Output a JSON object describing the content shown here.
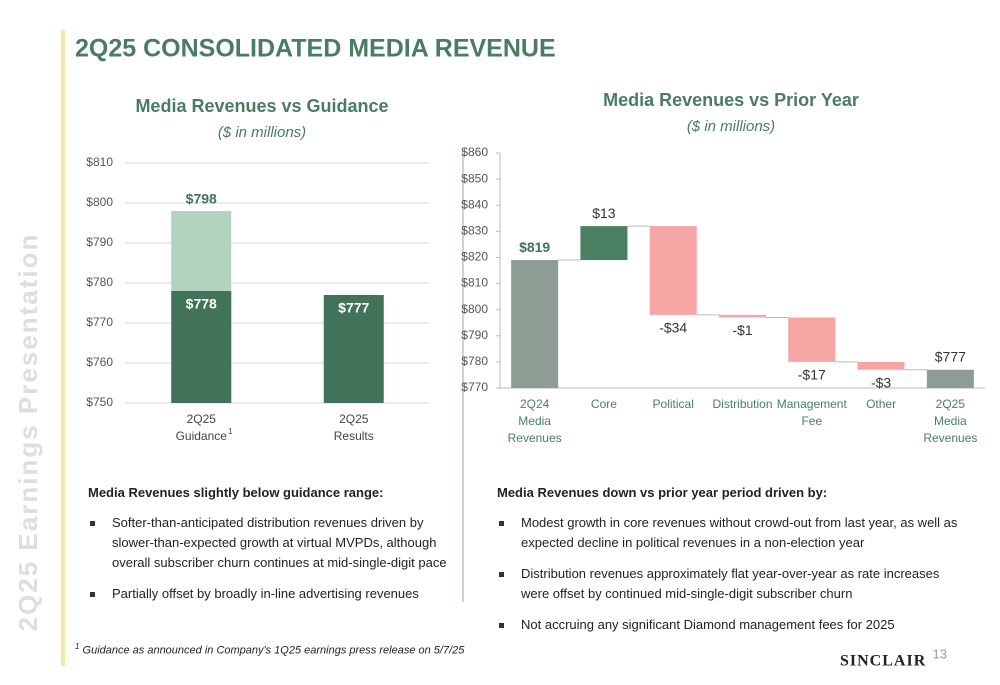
{
  "sidebar": "2Q25 Earnings Presentation",
  "title": "2Q25 CONSOLIDATED MEDIA REVENUE",
  "chart_data": [
    {
      "type": "bar",
      "title": "Media Revenues vs Guidance",
      "subtitle": "($ in millions)",
      "categories": [
        [
          "2Q25",
          "Guidance"
        ],
        [
          "2Q25",
          "Results"
        ]
      ],
      "category_marks": [
        "1",
        null
      ],
      "series": [
        {
          "color": "#b3d3c1",
          "values": [
            798,
            null
          ],
          "value_labels": [
            "$798",
            null
          ],
          "label_position": "above"
        },
        {
          "color": "#41735b",
          "values": [
            778,
            777
          ],
          "value_labels": [
            "$778",
            "$777"
          ],
          "label_position": "inside"
        }
      ],
      "ylim": [
        750,
        810
      ],
      "yticks": [
        {
          "value": 750,
          "label": "$750"
        },
        {
          "value": 760,
          "label": "$760"
        },
        {
          "value": 770,
          "label": "$770"
        },
        {
          "value": 780,
          "label": "$780"
        },
        {
          "value": 790,
          "label": "$790"
        },
        {
          "value": 800,
          "label": "$800"
        },
        {
          "value": 810,
          "label": "$810"
        }
      ],
      "grid": true
    },
    {
      "type": "waterfall",
      "title": "Media Revenues vs Prior Year",
      "subtitle": "($ in millions)",
      "categories": [
        [
          "2Q24",
          "Media",
          "Revenues"
        ],
        [
          "Core"
        ],
        [
          "Political"
        ],
        [
          "Distribution"
        ],
        [
          "Management",
          "Fee"
        ],
        [
          "Other"
        ],
        [
          "2Q25",
          "Media",
          "Revenues"
        ]
      ],
      "values": [
        819,
        13,
        -34,
        -1,
        -17,
        -3,
        777
      ],
      "value_labels": [
        "$819",
        "$13",
        "-$34",
        "-$1",
        "-$17",
        "-$3",
        "$777"
      ],
      "totals": [
        true,
        false,
        false,
        false,
        false,
        false,
        true
      ],
      "colors": {
        "total": "#8e9d94",
        "increase": "#4a7f62",
        "decrease": "#f6a5a5"
      },
      "ylim": [
        770,
        860
      ],
      "yticks": [
        {
          "value": 770,
          "label": "$770"
        },
        {
          "value": 780,
          "label": "$780"
        },
        {
          "value": 790,
          "label": "$790"
        },
        {
          "value": 800,
          "label": "$800"
        },
        {
          "value": 810,
          "label": "$810"
        },
        {
          "value": 820,
          "label": "$820"
        },
        {
          "value": 830,
          "label": "$830"
        },
        {
          "value": 840,
          "label": "$840"
        },
        {
          "value": 850,
          "label": "$850"
        },
        {
          "value": 860,
          "label": "$860"
        }
      ],
      "grid": false
    }
  ],
  "left_text": {
    "heading": "Media Revenues slightly below guidance range:",
    "bullets": [
      "Softer-than-anticipated distribution revenues driven by slower-than-expected growth at virtual MVPDs, although overall subscriber churn continues at mid-single-digit pace",
      "Partially offset by broadly in-line advertising revenues"
    ]
  },
  "right_text": {
    "heading": "Media Revenues down vs prior year period driven by:",
    "bullets": [
      "Modest growth in core revenues without crowd-out from last year, as well as expected decline in political revenues in a non-election year",
      "Distribution revenues approximately flat year-over-year as rate increases were offset by continued mid-single-digit subscriber churn",
      "Not accruing any significant Diamond management fees for 2025"
    ]
  },
  "footnote": {
    "mark": "1",
    "text": "Guidance as announced in Company's 1Q25 earnings press release on 5/7/25"
  },
  "logo": "SINCLAIR",
  "page_number": "13"
}
